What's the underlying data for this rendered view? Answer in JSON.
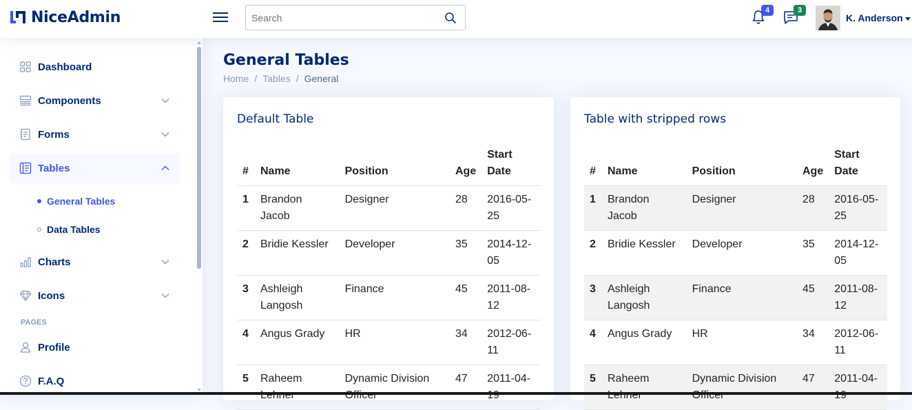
{
  "app": {
    "name": "NiceAdmin"
  },
  "header": {
    "search_placeholder": "Search",
    "notifications": {
      "icon": "bell-icon",
      "count": "4",
      "color": "#4154f1"
    },
    "messages": {
      "icon": "chat-icon",
      "count": "3",
      "color": "#198754"
    },
    "user": {
      "name": "K. Anderson"
    }
  },
  "sidebar": {
    "items": [
      {
        "label": "Dashboard",
        "icon": "grid-icon"
      },
      {
        "label": "Components",
        "icon": "menu-button-icon"
      },
      {
        "label": "Forms",
        "icon": "journal-text-icon"
      },
      {
        "label": "Tables",
        "icon": "layout-text-icon"
      },
      {
        "label": "Charts",
        "icon": "bar-chart-icon"
      },
      {
        "label": "Icons",
        "icon": "gem-icon"
      }
    ],
    "tables_sub": [
      {
        "label": "General Tables"
      },
      {
        "label": "Data Tables"
      }
    ],
    "pages_heading": "Pages",
    "pages": [
      {
        "label": "Profile",
        "icon": "person-icon"
      },
      {
        "label": "F.A.Q",
        "icon": "question-circle-icon"
      }
    ]
  },
  "main": {
    "title": "General Tables",
    "breadcrumb": [
      "Home",
      "Tables",
      "General"
    ]
  },
  "cards": [
    {
      "title": "Default Table",
      "headers": [
        "#",
        "Name",
        "Position",
        "Age",
        "Start Date"
      ],
      "rows": [
        [
          "1",
          "Brandon Jacob",
          "Designer",
          "28",
          "2016-05-25"
        ],
        [
          "2",
          "Bridie Kessler",
          "Developer",
          "35",
          "2014-12-05"
        ],
        [
          "3",
          "Ashleigh Langosh",
          "Finance",
          "45",
          "2011-08-12"
        ],
        [
          "4",
          "Angus Grady",
          "HR",
          "34",
          "2012-06-11"
        ],
        [
          "5",
          "Raheem Lehner",
          "Dynamic Division Officer",
          "47",
          "2011-04-19"
        ]
      ]
    },
    {
      "title": "Table with stripped rows",
      "headers": [
        "#",
        "Name",
        "Position",
        "Age",
        "Start Date"
      ],
      "rows": [
        [
          "1",
          "Brandon Jacob",
          "Designer",
          "28",
          "2016-05-25"
        ],
        [
          "2",
          "Bridie Kessler",
          "Developer",
          "35",
          "2014-12-05"
        ],
        [
          "3",
          "Ashleigh Langosh",
          "Finance",
          "45",
          "2011-08-12"
        ],
        [
          "4",
          "Angus Grady",
          "HR",
          "34",
          "2012-06-11"
        ],
        [
          "5",
          "Raheem Lehner",
          "Dynamic Division Officer",
          "47",
          "2011-04-19"
        ]
      ]
    }
  ],
  "colors": {
    "brand": "#012970",
    "accent": "#4154f1",
    "muted": "#899bbd"
  }
}
